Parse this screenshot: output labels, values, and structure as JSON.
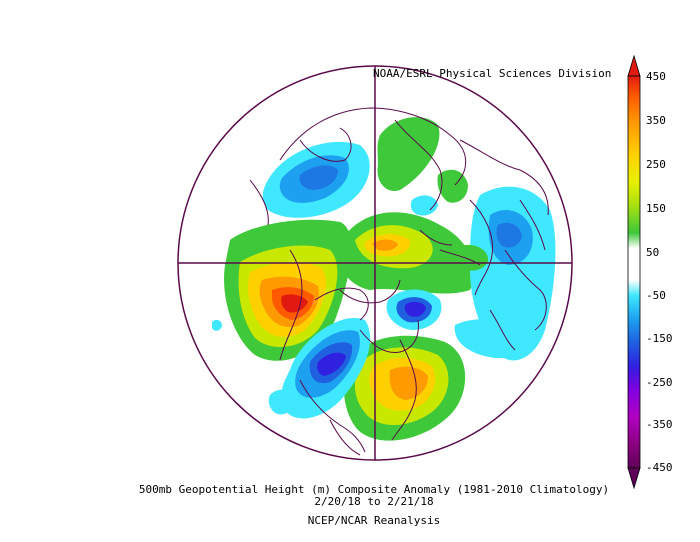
{
  "header": {
    "credit": "NOAA/ESRL Physical Sciences Division"
  },
  "footer": {
    "line1": "500mb Geopotential Height (m) Composite Anomaly (1981-2010 Climatology)",
    "line2": "2/20/18   to 2/21/18",
    "line3": "NCEP/NCAR Reanalysis"
  },
  "colorbar": {
    "labels": [
      "450",
      "350",
      "250",
      "150",
      "50",
      "-50",
      "-150",
      "-250",
      "-350",
      "-450"
    ],
    "colors": [
      "#e01a10",
      "#ff6a00",
      "#ffa200",
      "#ffd000",
      "#f4f000",
      "#c8e800",
      "#86d820",
      "#3ec83a",
      "#ffffff",
      "#ffffff",
      "#3ee8ff",
      "#20b4f4",
      "#1e78e4",
      "#2a2ae0",
      "#6010e0",
      "#b000cc",
      "#a00090",
      "#7a0070",
      "#600058"
    ]
  },
  "anomalies": [
    {
      "name": "northeast-pacific-ridge",
      "value": 450
    },
    {
      "name": "west-atlantic-ridge",
      "value": 300
    },
    {
      "name": "arctic-ridge",
      "value": 250
    },
    {
      "name": "north-america-trough",
      "value": -250
    },
    {
      "name": "siberia-trough",
      "value": -200
    },
    {
      "name": "europe-trough",
      "value": -150
    }
  ]
}
